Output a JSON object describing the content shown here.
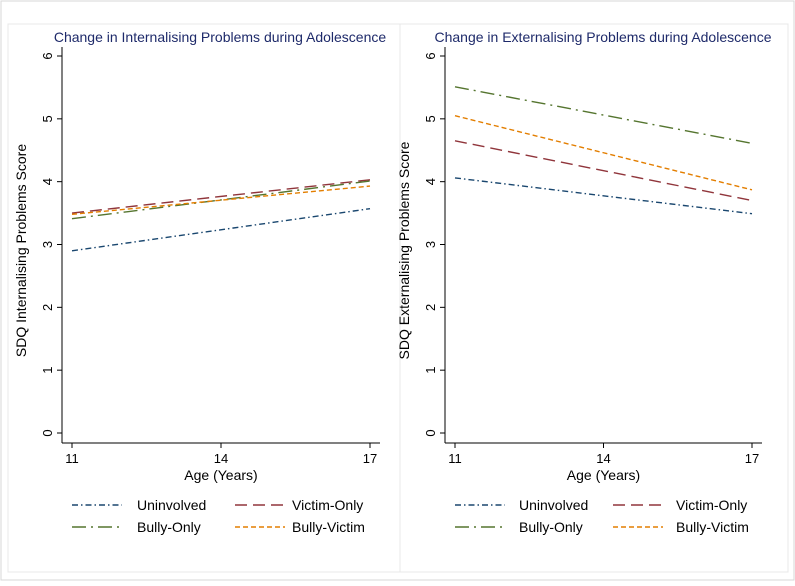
{
  "chart_data": [
    {
      "type": "line",
      "title": "Change in Internalising Problems during Adolescence",
      "xlabel": "Age (Years)",
      "ylabel": "SDQ Internalising Problems Score",
      "x": [
        11,
        17
      ],
      "x_ticks": [
        11,
        14,
        17
      ],
      "x_tick_labels": [
        "11",
        "14",
        "17"
      ],
      "xlim": [
        11,
        17
      ],
      "y_ticks": [
        0,
        1,
        2,
        3,
        4,
        5,
        6
      ],
      "y_tick_labels": [
        "0",
        "1",
        "2",
        "3",
        "4",
        "5",
        "6"
      ],
      "ylim": [
        0,
        6
      ],
      "grid": false,
      "legend_position": "bottom",
      "series": [
        {
          "name": "Uninvolved",
          "values": [
            2.9,
            3.57
          ],
          "color": "#1a476f",
          "dash": "dash-dot"
        },
        {
          "name": "Victim-Only",
          "values": [
            3.5,
            4.03
          ],
          "color": "#90353b",
          "dash": "long-dash"
        },
        {
          "name": "Bully-Only",
          "values": [
            3.41,
            4.01
          ],
          "color": "#55752f",
          "dash": "long-dash-dot"
        },
        {
          "name": "Bully-Victim",
          "values": [
            3.48,
            3.93
          ],
          "color": "#e37e00",
          "dash": "short-dash"
        }
      ]
    },
    {
      "type": "line",
      "title": "Change in Externalising Problems during Adolescence",
      "xlabel": "Age (Years)",
      "ylabel": "SDQ Externalising Problems Score",
      "x": [
        11,
        17
      ],
      "x_ticks": [
        11,
        14,
        17
      ],
      "x_tick_labels": [
        "11",
        "14",
        "17"
      ],
      "xlim": [
        11,
        17
      ],
      "y_ticks": [
        0,
        1,
        2,
        3,
        4,
        5,
        6
      ],
      "y_tick_labels": [
        "0",
        "1",
        "2",
        "3",
        "4",
        "5",
        "6"
      ],
      "ylim": [
        0,
        6
      ],
      "grid": false,
      "legend_position": "bottom",
      "series": [
        {
          "name": "Uninvolved",
          "values": [
            4.06,
            3.49
          ],
          "color": "#1a476f",
          "dash": "dash-dot"
        },
        {
          "name": "Victim-Only",
          "values": [
            4.65,
            3.7
          ],
          "color": "#90353b",
          "dash": "long-dash"
        },
        {
          "name": "Bully-Only",
          "values": [
            5.51,
            4.61
          ],
          "color": "#55752f",
          "dash": "long-dash-dot"
        },
        {
          "name": "Bully-Victim",
          "values": [
            5.05,
            3.87
          ],
          "color": "#e37e00",
          "dash": "short-dash"
        }
      ]
    }
  ]
}
